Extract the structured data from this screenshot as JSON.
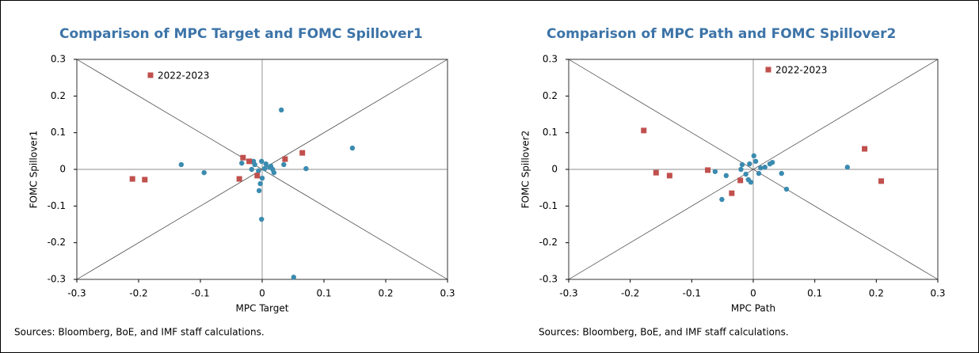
{
  "chart_data": [
    {
      "type": "scatter",
      "title": "Comparison of MPC Target and FOMC Spillover1",
      "xlabel": "MPC Target",
      "ylabel": "FOMC Spillover1",
      "note": "Sources: Bloomberg, BoE, and IMF staff calculations.",
      "xlim": [
        -0.3,
        0.3
      ],
      "ylim": [
        -0.3,
        0.3
      ],
      "xticks": [
        -0.3,
        -0.2,
        -0.1,
        0,
        0.1,
        0.2,
        0.3
      ],
      "yticks": [
        -0.3,
        -0.2,
        -0.1,
        0,
        0.1,
        0.2,
        0.3
      ],
      "series": [
        {
          "color": "#3b8bb0",
          "x": [
            -0.131,
            -0.094,
            0.031,
            0.146,
            0.071,
            -0.001,
            0.051,
            -0.005,
            -0.003,
            0,
            0.035,
            0.019,
            -0.033,
            -0.014,
            -0.017,
            -0.012,
            0.006,
            0.012,
            0.014,
            -0.006,
            -0.001,
            0.004,
            0.017
          ],
          "values": [
            0.013,
            -0.009,
            0.162,
            0.058,
            0.002,
            -0.136,
            -0.294,
            -0.058,
            -0.039,
            -0.024,
            0.013,
            -0.009,
            0.017,
            0.022,
            0,
            0.013,
            0.015,
            0.006,
            0.009,
            -0.004,
            0.022,
            0.002,
            0
          ]
        },
        {
          "name": "2022-2023",
          "color": "#c0504d",
          "x": [
            -0.21,
            -0.19,
            -0.037,
            -0.031,
            -0.021,
            -0.008,
            0.037,
            0.065
          ],
          "values": [
            -0.026,
            -0.028,
            -0.026,
            0.032,
            0.022,
            -0.017,
            0.028,
            0.045
          ]
        }
      ]
    },
    {
      "type": "scatter",
      "title": "Comparison of MPC Path and FOMC Spillover2",
      "xlabel": "MPC Path",
      "ylabel": "FOMC Spillover2",
      "note": "Sources: Bloomberg, BoE, and IMF staff calculations.",
      "xlim": [
        -0.3,
        0.3
      ],
      "ylim": [
        -0.3,
        0.3
      ],
      "xticks": [
        -0.3,
        -0.2,
        -0.1,
        0,
        0.1,
        0.2,
        0.3
      ],
      "yticks": [
        -0.3,
        -0.2,
        -0.1,
        0,
        0.1,
        0.2,
        0.3
      ],
      "series": [
        {
          "color": "#3b8bb0",
          "x": [
            -0.062,
            -0.051,
            0.054,
            0.153,
            -0.02,
            -0.018,
            -0.006,
            0.001,
            0.004,
            -0.004,
            -0.008,
            0.012,
            0.019,
            0.027,
            0.031,
            0.046,
            0.009,
            -0.044,
            -0.012
          ],
          "values": [
            -0.006,
            -0.082,
            -0.054,
            0.006,
            0,
            0.013,
            0.015,
            0.037,
            0.022,
            -0.035,
            -0.028,
            0.004,
            0.006,
            0.015,
            0.019,
            -0.011,
            -0.011,
            -0.017,
            -0.013
          ]
        },
        {
          "name": "2022-2023",
          "color": "#c0504d",
          "x": [
            -0.178,
            -0.158,
            -0.136,
            -0.074,
            -0.035,
            -0.021,
            0.181,
            0.208
          ],
          "values": [
            0.106,
            -0.009,
            -0.017,
            -0.002,
            -0.065,
            -0.03,
            0.056,
            -0.032
          ]
        }
      ]
    }
  ]
}
